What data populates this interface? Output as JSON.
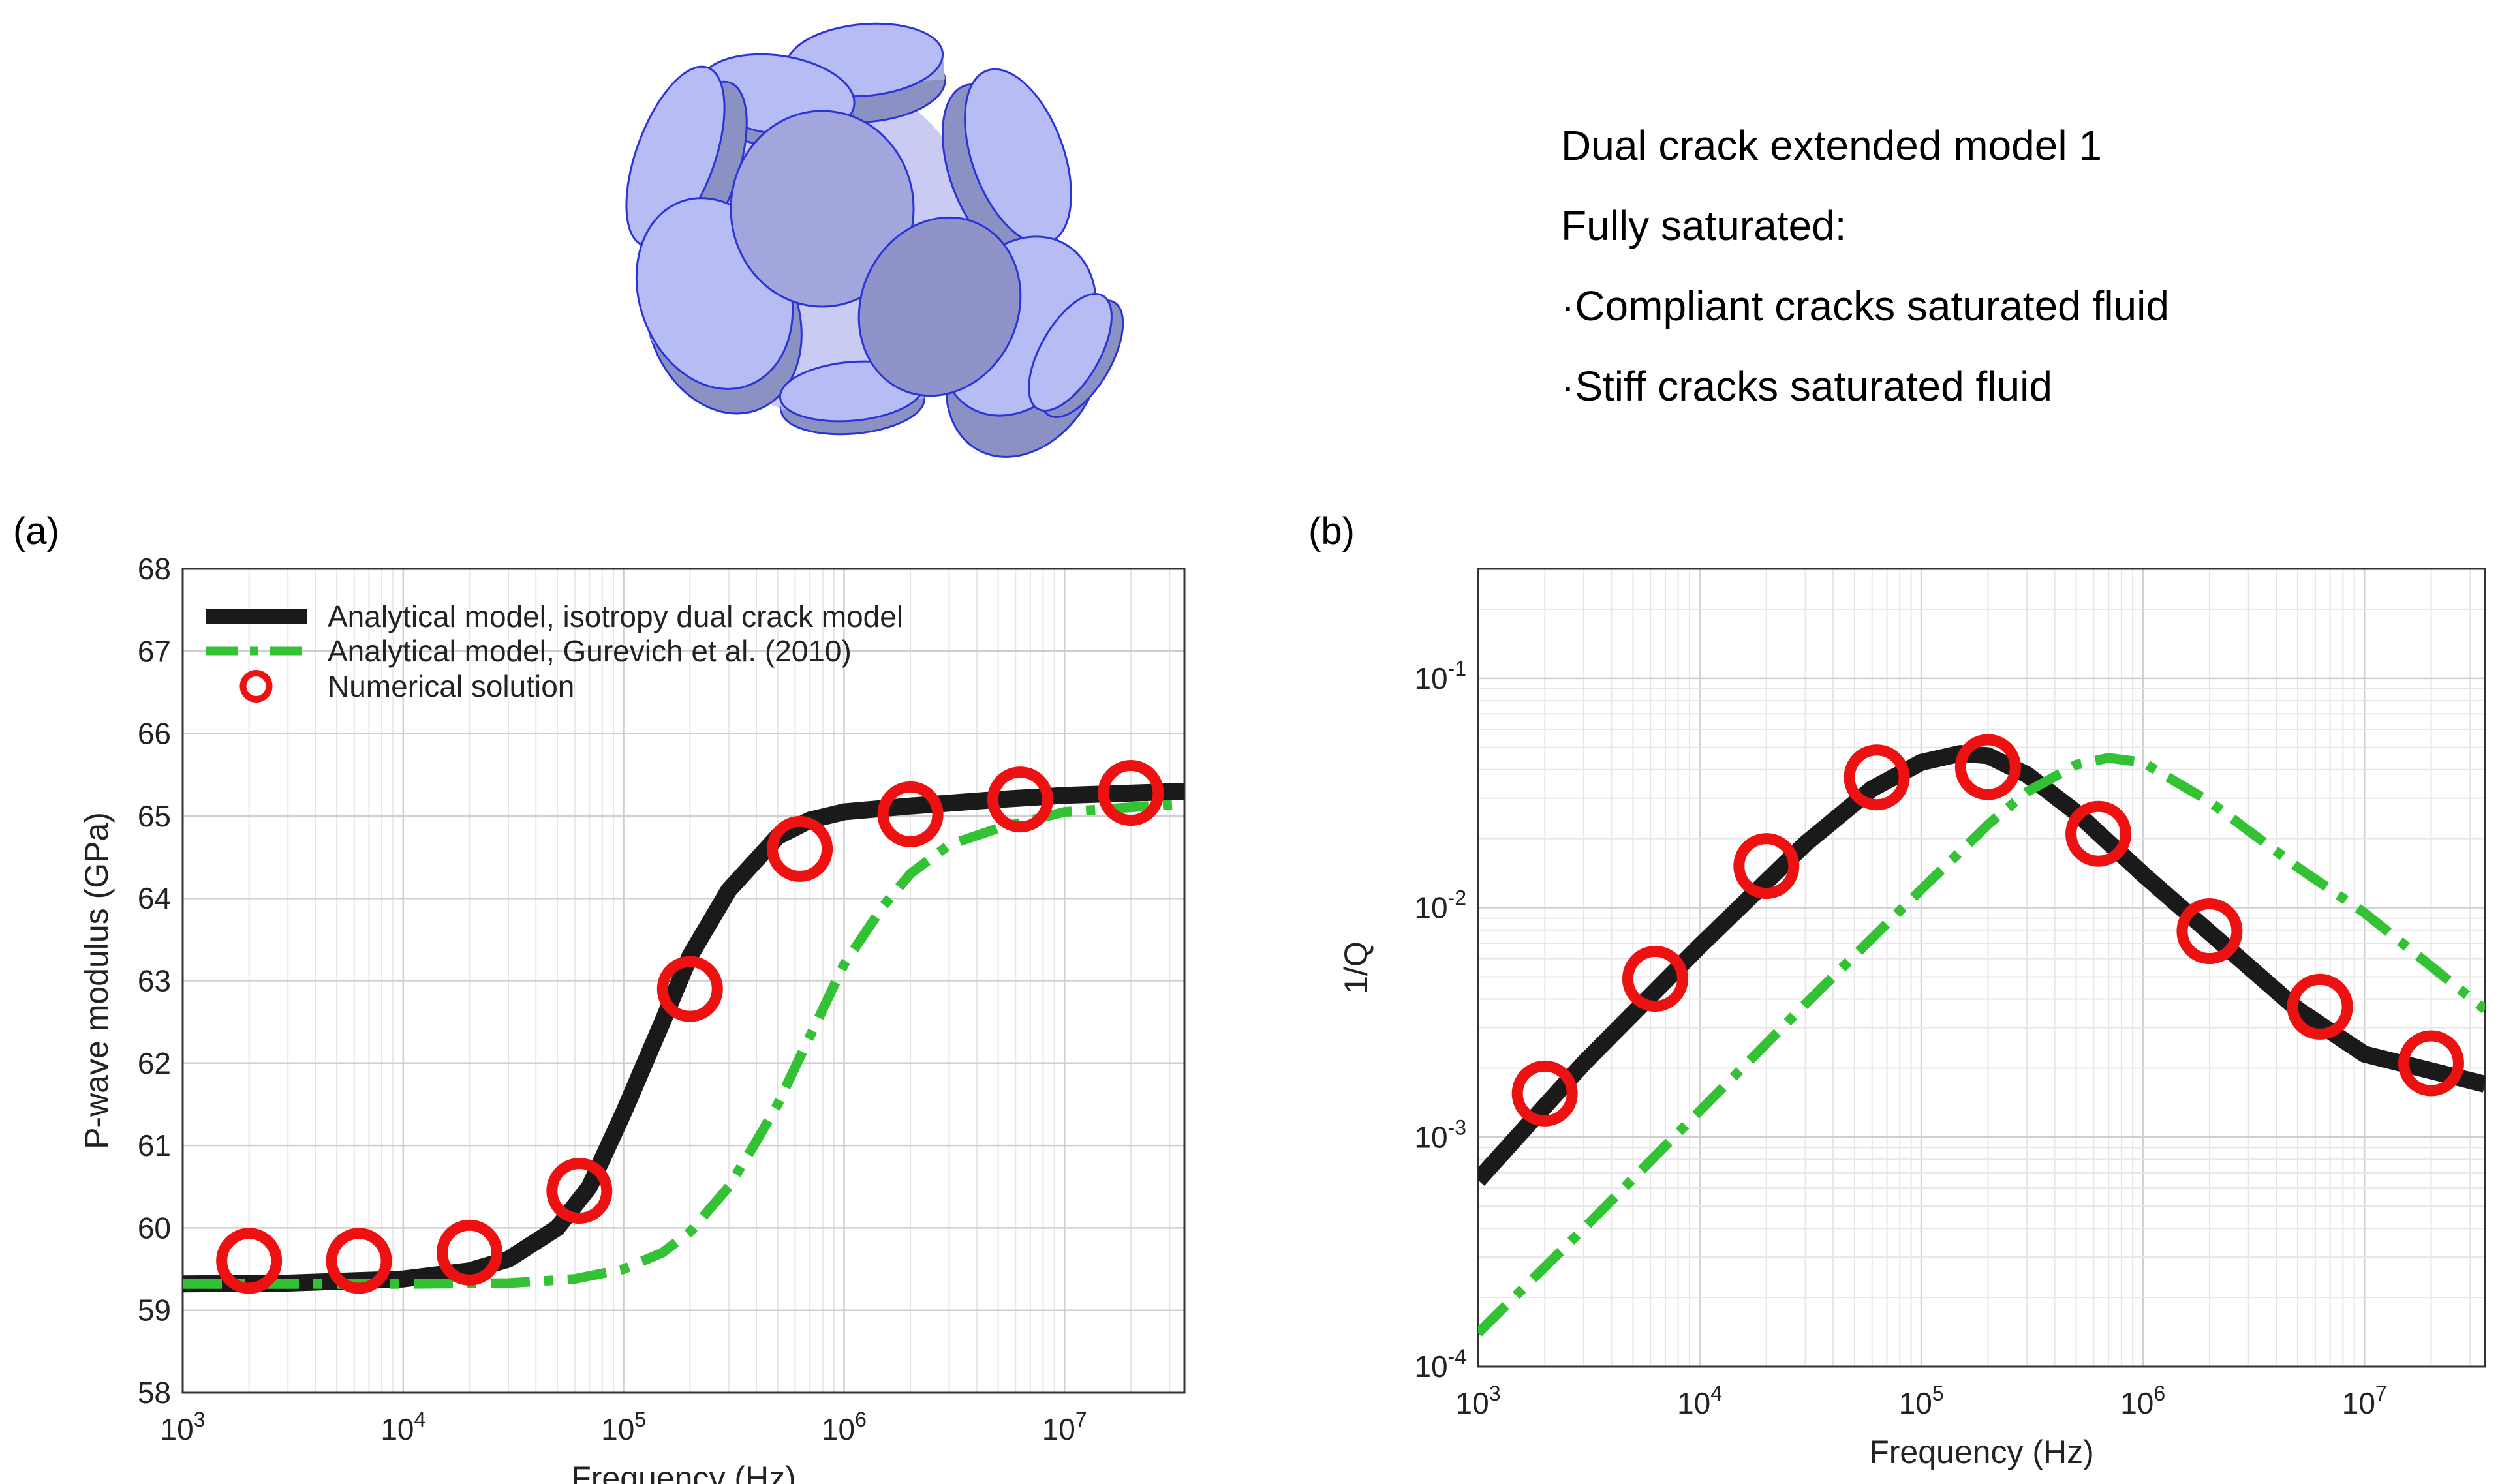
{
  "model_description": {
    "title": "Dual crack extended model 1",
    "subtitle": "Fully saturated:",
    "items": [
      "·Compliant cracks saturated fluid",
      "·Stiff cracks saturated fluid"
    ]
  },
  "colors": {
    "analytical_dual": "#1a1a1a",
    "analytical_gurevich": "#33c233",
    "numerical": "#ee1111",
    "crack_fill": "#b8bcf4",
    "crack_stroke": "#2a34d8"
  },
  "chart_data": [
    {
      "panel_label": "(a)",
      "type": "line",
      "xlabel": "Frequency (Hz)",
      "ylabel": "P-wave modulus (GPa)",
      "xscale": "log",
      "xlim": [
        1000,
        35000000
      ],
      "ylim": [
        58,
        68
      ],
      "x_tick_labels": [
        "10^3",
        "10^4",
        "10^5",
        "10^6",
        "10^7"
      ],
      "y_tick_labels": [
        "58",
        "59",
        "60",
        "61",
        "62",
        "63",
        "64",
        "65",
        "66",
        "67",
        "68"
      ],
      "grid": true,
      "legend_position": "top-left",
      "series": [
        {
          "name": "Analytical model, isotropy dual crack model",
          "style": "solid-thick",
          "x": [
            1000,
            3000,
            10000,
            20000,
            30000,
            50000,
            70000,
            100000,
            150000,
            200000,
            300000,
            500000,
            700000,
            1000000,
            2000000,
            5000000,
            10000000,
            35000000
          ],
          "y": [
            59.32,
            59.33,
            59.38,
            59.48,
            59.62,
            60.0,
            60.5,
            61.4,
            62.5,
            63.3,
            64.1,
            64.75,
            64.95,
            65.05,
            65.12,
            65.2,
            65.25,
            65.3
          ]
        },
        {
          "name": "Analytical model, Gurevich et al. (2010)",
          "style": "dash-dot",
          "x": [
            1000,
            10000,
            30000,
            60000,
            100000,
            150000,
            200000,
            300000,
            400000,
            500000,
            600000,
            800000,
            1000000,
            1500000,
            2000000,
            3000000,
            5000000,
            10000000,
            35000000
          ],
          "y": [
            59.32,
            59.32,
            59.33,
            59.38,
            59.5,
            59.7,
            59.95,
            60.5,
            61.05,
            61.5,
            61.95,
            62.65,
            63.2,
            63.9,
            64.3,
            64.65,
            64.85,
            65.05,
            65.15
          ]
        },
        {
          "name": "Numerical solution",
          "style": "circle-markers",
          "x": [
            2000,
            6300,
            20000,
            63000,
            200000,
            630000,
            2000000,
            6300000,
            20000000
          ],
          "y": [
            59.6,
            59.6,
            59.7,
            60.45,
            62.9,
            64.6,
            65.02,
            65.2,
            65.28
          ]
        }
      ]
    },
    {
      "panel_label": "(b)",
      "type": "line",
      "xlabel": "Frequency (Hz)",
      "ylabel": "1/Q",
      "xscale": "log",
      "yscale": "log",
      "xlim": [
        1000,
        35000000
      ],
      "ylim": [
        0.0001,
        0.3
      ],
      "x_tick_labels": [
        "10^3",
        "10^4",
        "10^5",
        "10^6",
        "10^7"
      ],
      "y_tick_labels": [
        "10^-4",
        "10^-3",
        "10^-2",
        "10^-1"
      ],
      "grid": true,
      "series": [
        {
          "name": "Analytical model, isotropy dual crack model",
          "style": "solid-thick",
          "x": [
            1000,
            3000,
            10000,
            30000,
            60000,
            100000,
            150000,
            200000,
            300000,
            500000,
            1000000,
            2000000,
            5000000,
            10000000,
            35000000
          ],
          "y": [
            0.00065,
            0.0021,
            0.0068,
            0.019,
            0.033,
            0.043,
            0.047,
            0.046,
            0.038,
            0.026,
            0.014,
            0.0078,
            0.0036,
            0.0023,
            0.0017
          ]
        },
        {
          "name": "Analytical model, Gurevich et al. (2010)",
          "style": "dash-dot",
          "x": [
            1000,
            3000,
            10000,
            30000,
            100000,
            200000,
            300000,
            500000,
            700000,
            1000000,
            2000000,
            5000000,
            10000000,
            35000000
          ],
          "y": [
            0.00014,
            0.0004,
            0.0013,
            0.0038,
            0.012,
            0.023,
            0.032,
            0.042,
            0.045,
            0.043,
            0.029,
            0.015,
            0.0095,
            0.0036
          ]
        },
        {
          "name": "Numerical solution",
          "style": "circle-markers",
          "x": [
            2000,
            6300,
            20000,
            63000,
            200000,
            630000,
            2000000,
            6300000,
            20000000
          ],
          "y": [
            0.00155,
            0.0049,
            0.0152,
            0.037,
            0.041,
            0.021,
            0.0079,
            0.0037,
            0.0021
          ]
        }
      ]
    }
  ]
}
